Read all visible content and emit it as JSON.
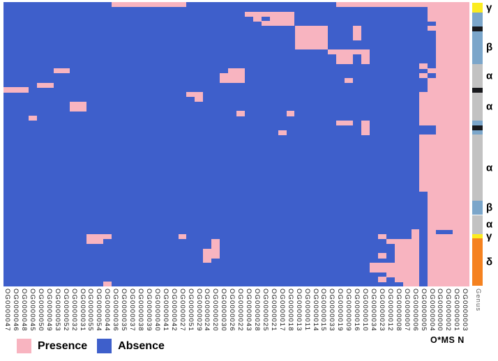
{
  "legend": {
    "items": [
      {
        "label": "Presence",
        "color": "#F8B4C0"
      },
      {
        "label": "Absence",
        "color": "#3E5FCB"
      }
    ]
  },
  "genus_axis": {
    "title": "Genus",
    "visible_class_labels": [
      "γ",
      "β",
      "α",
      "α",
      "α",
      "β",
      "α",
      "γ",
      "δ"
    ]
  },
  "footnote": "O*MS N",
  "chart_data": {
    "type": "heatmap",
    "title": "",
    "xlabel": "",
    "ylabel": "",
    "legend_position": "bottom-left",
    "x_tick_rotation_deg": 90,
    "cell_values": "binary: 1 = Presence (pink), 0 = Absence (blue)",
    "colors": {
      "presence": "#F8B4C0",
      "absence": "#3E5FCB"
    },
    "n_rows": 60,
    "columns": [
      "OG0000047",
      "OG0000046",
      "OG0000048",
      "OG0000045",
      "OG0000050",
      "OG0000049",
      "OG0000053",
      "OG0000052",
      "OG0000032",
      "OG0000031",
      "OG0000055",
      "OG0000054",
      "OG0000044",
      "OG0000036",
      "OG0000035",
      "OG0000037",
      "OG0000038",
      "OG0000039",
      "OG0000040",
      "OG0000041",
      "OG0000042",
      "OG0000027",
      "OG0000051",
      "OG0000029",
      "OG0000024",
      "OG0000020",
      "OG0000030",
      "OG0000026",
      "OG0000022",
      "OG0000043",
      "OG0000028",
      "OG0000025",
      "OG0000021",
      "OG0000017",
      "OG0000018",
      "OG0000013",
      "OG0000011",
      "OG0000014",
      "OG0000015",
      "OG0000033",
      "OG0000019",
      "OG0000009",
      "OG0000016",
      "OG0000010",
      "OG0000034",
      "OG0000023",
      "OG0000012",
      "OG0000008",
      "OG0000007",
      "OG0000006",
      "OG0000005",
      "OG0000004",
      "OG0000000",
      "OG0000002",
      "OG0000001",
      "OG0000003"
    ],
    "presence_runs": [
      [
        [
          13,
          21
        ],
        [
          40,
          55
        ]
      ],
      [
        [
          51,
          55
        ]
      ],
      [
        [
          29,
          34
        ],
        [
          51,
          55
        ]
      ],
      [
        [
          30,
          30
        ],
        [
          32,
          34
        ],
        [
          51,
          55
        ]
      ],
      [
        [
          31,
          34
        ],
        [
          52,
          55
        ]
      ],
      [
        [
          35,
          38
        ],
        [
          42,
          42
        ],
        [
          51,
          55
        ]
      ],
      [
        [
          35,
          38
        ],
        [
          42,
          42
        ],
        [
          52,
          55
        ]
      ],
      [
        [
          35,
          38
        ],
        [
          42,
          42
        ],
        [
          52,
          55
        ]
      ],
      [
        [
          35,
          38
        ],
        [
          52,
          55
        ]
      ],
      [
        [
          35,
          38
        ],
        [
          52,
          55
        ]
      ],
      [
        [
          39,
          43
        ],
        [
          52,
          55
        ]
      ],
      [
        [
          40,
          41
        ],
        [
          43,
          43
        ],
        [
          52,
          55
        ]
      ],
      [
        [
          40,
          41
        ],
        [
          43,
          43
        ],
        [
          52,
          55
        ]
      ],
      [
        [
          50,
          50
        ],
        [
          52,
          55
        ]
      ],
      [
        [
          6,
          7
        ],
        [
          27,
          28
        ],
        [
          51,
          55
        ]
      ],
      [
        [
          26,
          28
        ],
        [
          50,
          50
        ],
        [
          52,
          55
        ]
      ],
      [
        [
          26,
          28
        ],
        [
          41,
          41
        ],
        [
          51,
          55
        ]
      ],
      [
        [
          4,
          5
        ],
        [
          51,
          55
        ]
      ],
      [
        [
          0,
          2
        ],
        [
          51,
          55
        ]
      ],
      [
        [
          22,
          23
        ],
        [
          50,
          55
        ]
      ],
      [
        [
          23,
          23
        ],
        [
          50,
          55
        ]
      ],
      [
        [
          8,
          9
        ],
        [
          50,
          55
        ]
      ],
      [
        [
          8,
          9
        ],
        [
          50,
          55
        ]
      ],
      [
        [
          28,
          28
        ],
        [
          34,
          34
        ],
        [
          50,
          55
        ]
      ],
      [
        [
          3,
          3
        ],
        [
          50,
          55
        ]
      ],
      [
        [
          40,
          41
        ],
        [
          43,
          43
        ],
        [
          50,
          55
        ]
      ],
      [
        [
          43,
          43
        ],
        [
          52,
          55
        ]
      ],
      [
        [
          33,
          33
        ],
        [
          43,
          43
        ],
        [
          52,
          55
        ]
      ],
      [
        [
          50,
          55
        ]
      ],
      [
        [
          50,
          55
        ]
      ],
      [
        [
          50,
          55
        ]
      ],
      [
        [
          50,
          55
        ]
      ],
      [
        [
          50,
          55
        ]
      ],
      [
        [
          50,
          55
        ]
      ],
      [
        [
          50,
          55
        ]
      ],
      [
        [
          50,
          55
        ]
      ],
      [
        [
          50,
          55
        ]
      ],
      [
        [
          50,
          55
        ]
      ],
      [
        [
          50,
          55
        ]
      ],
      [
        [
          50,
          55
        ]
      ],
      [
        [
          51,
          55
        ]
      ],
      [
        [
          51,
          55
        ]
      ],
      [
        [
          51,
          55
        ]
      ],
      [
        [
          51,
          55
        ]
      ],
      [
        [
          51,
          55
        ]
      ],
      [
        [
          51,
          55
        ]
      ],
      [
        [
          51,
          55
        ]
      ],
      [
        [
          51,
          55
        ]
      ],
      [
        [
          49,
          49
        ],
        [
          51,
          51
        ],
        [
          54,
          55
        ]
      ],
      [
        [
          10,
          12
        ],
        [
          21,
          21
        ],
        [
          45,
          45
        ],
        [
          49,
          49
        ],
        [
          51,
          55
        ]
      ],
      [
        [
          10,
          11
        ],
        [
          25,
          25
        ],
        [
          46,
          49
        ],
        [
          51,
          55
        ]
      ],
      [
        [
          25,
          25
        ],
        [
          47,
          49
        ],
        [
          51,
          55
        ]
      ],
      [
        [
          24,
          25
        ],
        [
          47,
          49
        ],
        [
          51,
          55
        ]
      ],
      [
        [
          24,
          25
        ],
        [
          45,
          45
        ],
        [
          47,
          49
        ],
        [
          51,
          55
        ]
      ],
      [
        [
          24,
          24
        ],
        [
          47,
          49
        ],
        [
          51,
          55
        ]
      ],
      [
        [
          44,
          49
        ],
        [
          51,
          55
        ]
      ],
      [
        [
          44,
          49
        ],
        [
          51,
          55
        ]
      ],
      [
        [
          46,
          49
        ],
        [
          51,
          55
        ]
      ],
      [
        [
          45,
          45
        ],
        [
          47,
          49
        ],
        [
          51,
          55
        ]
      ],
      [
        [
          12,
          12
        ],
        [
          48,
          49
        ],
        [
          51,
          55
        ]
      ]
    ],
    "genus_segments": [
      {
        "row_start": 0,
        "row_end": 1,
        "color": "#FBEC1F",
        "label": "γ"
      },
      {
        "row_start": 2,
        "row_end": 4,
        "color": "#7BA6CA",
        "label": ""
      },
      {
        "row_start": 5,
        "row_end": 5,
        "color": "#17181C",
        "label": ""
      },
      {
        "row_start": 6,
        "row_end": 12,
        "color": "#7BA6CA",
        "label": "β"
      },
      {
        "row_start": 13,
        "row_end": 17,
        "color": "#C2C2C2",
        "label": "α"
      },
      {
        "row_start": 18,
        "row_end": 18,
        "color": "#17181C",
        "label": ""
      },
      {
        "row_start": 19,
        "row_end": 24,
        "color": "#C2C2C2",
        "label": "α"
      },
      {
        "row_start": 25,
        "row_end": 25,
        "color": "#7BA6CA",
        "label": ""
      },
      {
        "row_start": 26,
        "row_end": 26,
        "color": "#17181C",
        "label": ""
      },
      {
        "row_start": 27,
        "row_end": 27,
        "color": "#7BA6CA",
        "label": ""
      },
      {
        "row_start": 28,
        "row_end": 41,
        "color": "#C2C2C2",
        "label": "α"
      },
      {
        "row_start": 42,
        "row_end": 44,
        "color": "#7BA6CA",
        "label": "β"
      },
      {
        "row_start": 45,
        "row_end": 48,
        "color": "#C2C2C2",
        "label": "α"
      },
      {
        "row_start": 49,
        "row_end": 49,
        "color": "#FBEC1F",
        "label": "γ"
      },
      {
        "row_start": 50,
        "row_end": 59,
        "color": "#F58220",
        "label": "δ"
      }
    ]
  }
}
